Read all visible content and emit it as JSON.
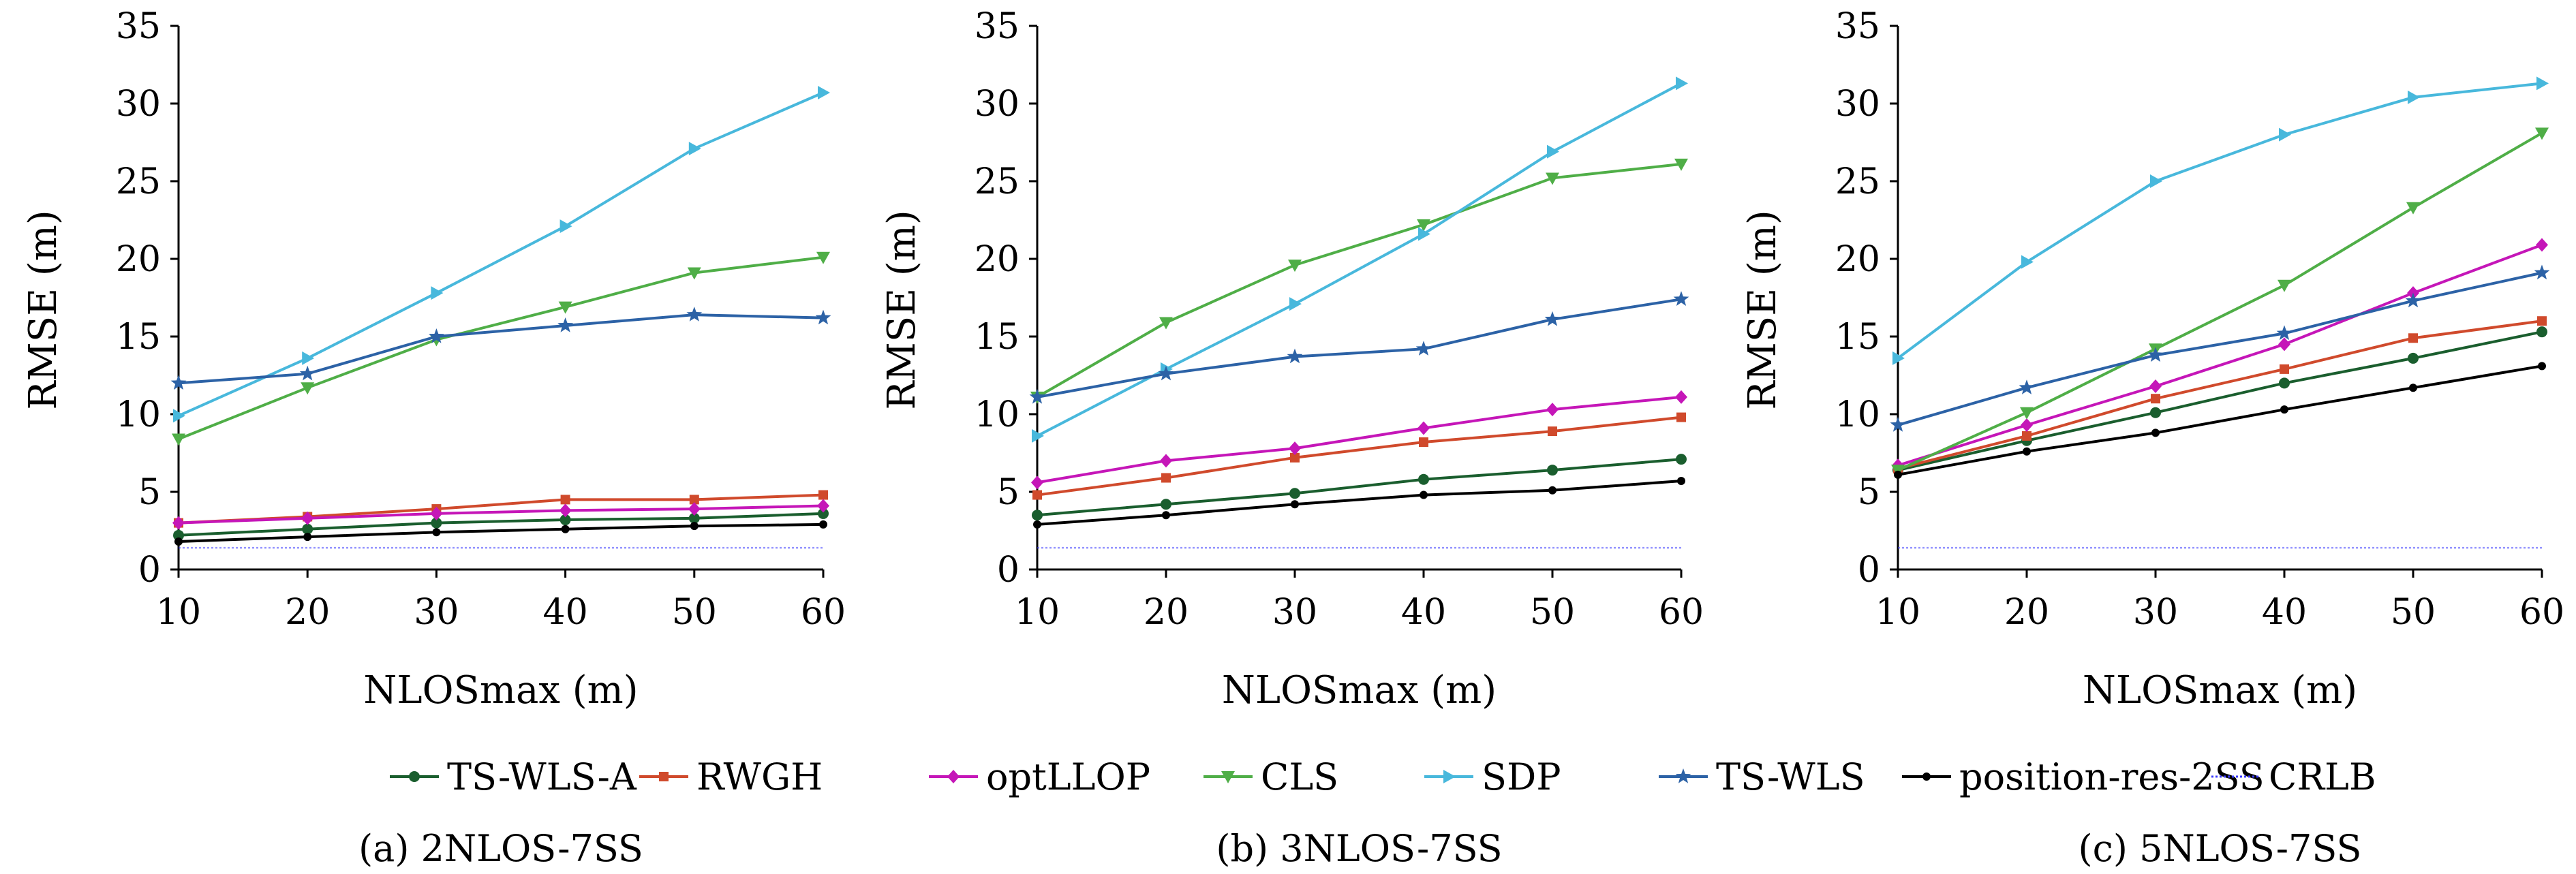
{
  "colors": {
    "TS-WLS-A": "#1a5e2e",
    "RWGH": "#d04a2c",
    "optLLOP": "#c516b8",
    "CLS": "#4fae47",
    "SDP": "#48b8dc",
    "TS-WLS": "#2c62a6",
    "position-res-2SS": "#000000",
    "CRLB": "#3b3bff"
  },
  "legend": [
    {
      "name": "TS-WLS-A",
      "marker": "circle"
    },
    {
      "name": "RWGH",
      "marker": "square"
    },
    {
      "name": "optLLOP",
      "marker": "diamond"
    },
    {
      "name": "CLS",
      "marker": "triangle-down"
    },
    {
      "name": "SDP",
      "marker": "triangle-right"
    },
    {
      "name": "TS-WLS",
      "marker": "star"
    },
    {
      "name": "position-res-2SS",
      "marker": "dot"
    },
    {
      "name": "CRLB",
      "marker": "dotted-line"
    }
  ],
  "chart_data": [
    {
      "type": "line",
      "caption": "(a) 2NLOS-7SS",
      "xlabel": "NLOSmax (m)",
      "ylabel": "RMSE (m)",
      "x": [
        10,
        20,
        30,
        40,
        50,
        60
      ],
      "xlim": [
        10,
        60
      ],
      "ylim": [
        0,
        35
      ],
      "xticks": [
        "10",
        "20",
        "30",
        "40",
        "50",
        "60"
      ],
      "yticks": [
        "0",
        "5",
        "10",
        "15",
        "20",
        "25",
        "30",
        "35"
      ],
      "series": [
        {
          "name": "TS-WLS-A",
          "values": [
            2.2,
            2.6,
            3.0,
            3.2,
            3.3,
            3.6
          ]
        },
        {
          "name": "RWGH",
          "values": [
            3.0,
            3.4,
            3.9,
            4.5,
            4.5,
            4.8
          ]
        },
        {
          "name": "optLLOP",
          "values": [
            3.0,
            3.3,
            3.6,
            3.8,
            3.9,
            4.1
          ]
        },
        {
          "name": "CLS",
          "values": [
            8.4,
            11.7,
            14.8,
            16.9,
            19.1,
            20.1
          ]
        },
        {
          "name": "SDP",
          "values": [
            9.9,
            13.6,
            17.8,
            22.1,
            27.1,
            30.7
          ]
        },
        {
          "name": "TS-WLS",
          "values": [
            12.0,
            12.6,
            15.0,
            15.7,
            16.4,
            16.2
          ]
        },
        {
          "name": "position-res-2SS",
          "values": [
            1.8,
            2.1,
            2.4,
            2.6,
            2.8,
            2.9
          ]
        },
        {
          "name": "CRLB",
          "values": [
            1.4,
            1.4,
            1.4,
            1.4,
            1.4,
            1.4
          ]
        }
      ]
    },
    {
      "type": "line",
      "caption": "(b) 3NLOS-7SS",
      "xlabel": "NLOSmax (m)",
      "ylabel": "RMSE (m)",
      "x": [
        10,
        20,
        30,
        40,
        50,
        60
      ],
      "xlim": [
        10,
        60
      ],
      "ylim": [
        0,
        35
      ],
      "xticks": [
        "10",
        "20",
        "30",
        "40",
        "50",
        "60"
      ],
      "yticks": [
        "0",
        "5",
        "10",
        "15",
        "20",
        "25",
        "30",
        "35"
      ],
      "series": [
        {
          "name": "TS-WLS-A",
          "values": [
            3.5,
            4.2,
            4.9,
            5.8,
            6.4,
            7.1
          ]
        },
        {
          "name": "RWGH",
          "values": [
            4.8,
            5.9,
            7.2,
            8.2,
            8.9,
            9.8
          ]
        },
        {
          "name": "optLLOP",
          "values": [
            5.6,
            7.0,
            7.8,
            9.1,
            10.3,
            11.1
          ]
        },
        {
          "name": "CLS",
          "values": [
            11.1,
            15.9,
            19.6,
            22.2,
            25.2,
            26.1
          ]
        },
        {
          "name": "SDP",
          "values": [
            8.6,
            12.9,
            17.1,
            21.6,
            26.9,
            31.3
          ]
        },
        {
          "name": "TS-WLS",
          "values": [
            11.1,
            12.6,
            13.7,
            14.2,
            16.1,
            17.4
          ]
        },
        {
          "name": "position-res-2SS",
          "values": [
            2.9,
            3.5,
            4.2,
            4.8,
            5.1,
            5.7
          ]
        },
        {
          "name": "CRLB",
          "values": [
            1.4,
            1.4,
            1.4,
            1.4,
            1.4,
            1.4
          ]
        }
      ]
    },
    {
      "type": "line",
      "caption": "(c) 5NLOS-7SS",
      "xlabel": "NLOSmax (m)",
      "ylabel": "RMSE (m)",
      "x": [
        10,
        20,
        30,
        40,
        50,
        60
      ],
      "xlim": [
        10,
        60
      ],
      "ylim": [
        0,
        35
      ],
      "xticks": [
        "10",
        "20",
        "30",
        "40",
        "50",
        "60"
      ],
      "yticks": [
        "0",
        "5",
        "10",
        "15",
        "20",
        "25",
        "30",
        "35"
      ],
      "series": [
        {
          "name": "TS-WLS-A",
          "values": [
            6.4,
            8.3,
            10.1,
            12.0,
            13.6,
            15.3
          ]
        },
        {
          "name": "RWGH",
          "values": [
            6.5,
            8.6,
            11.0,
            12.9,
            14.9,
            16.0
          ]
        },
        {
          "name": "optLLOP",
          "values": [
            6.7,
            9.3,
            11.8,
            14.5,
            17.8,
            20.9
          ]
        },
        {
          "name": "CLS",
          "values": [
            6.4,
            10.1,
            14.2,
            18.3,
            23.3,
            28.1
          ]
        },
        {
          "name": "SDP",
          "values": [
            13.6,
            19.8,
            25.0,
            28.0,
            30.4,
            31.3
          ]
        },
        {
          "name": "TS-WLS",
          "values": [
            9.3,
            11.7,
            13.8,
            15.2,
            17.3,
            19.1
          ]
        },
        {
          "name": "position-res-2SS",
          "values": [
            6.1,
            7.6,
            8.8,
            10.3,
            11.7,
            13.1
          ]
        },
        {
          "name": "CRLB",
          "values": [
            1.4,
            1.4,
            1.4,
            1.4,
            1.4,
            1.4
          ]
        }
      ]
    }
  ]
}
